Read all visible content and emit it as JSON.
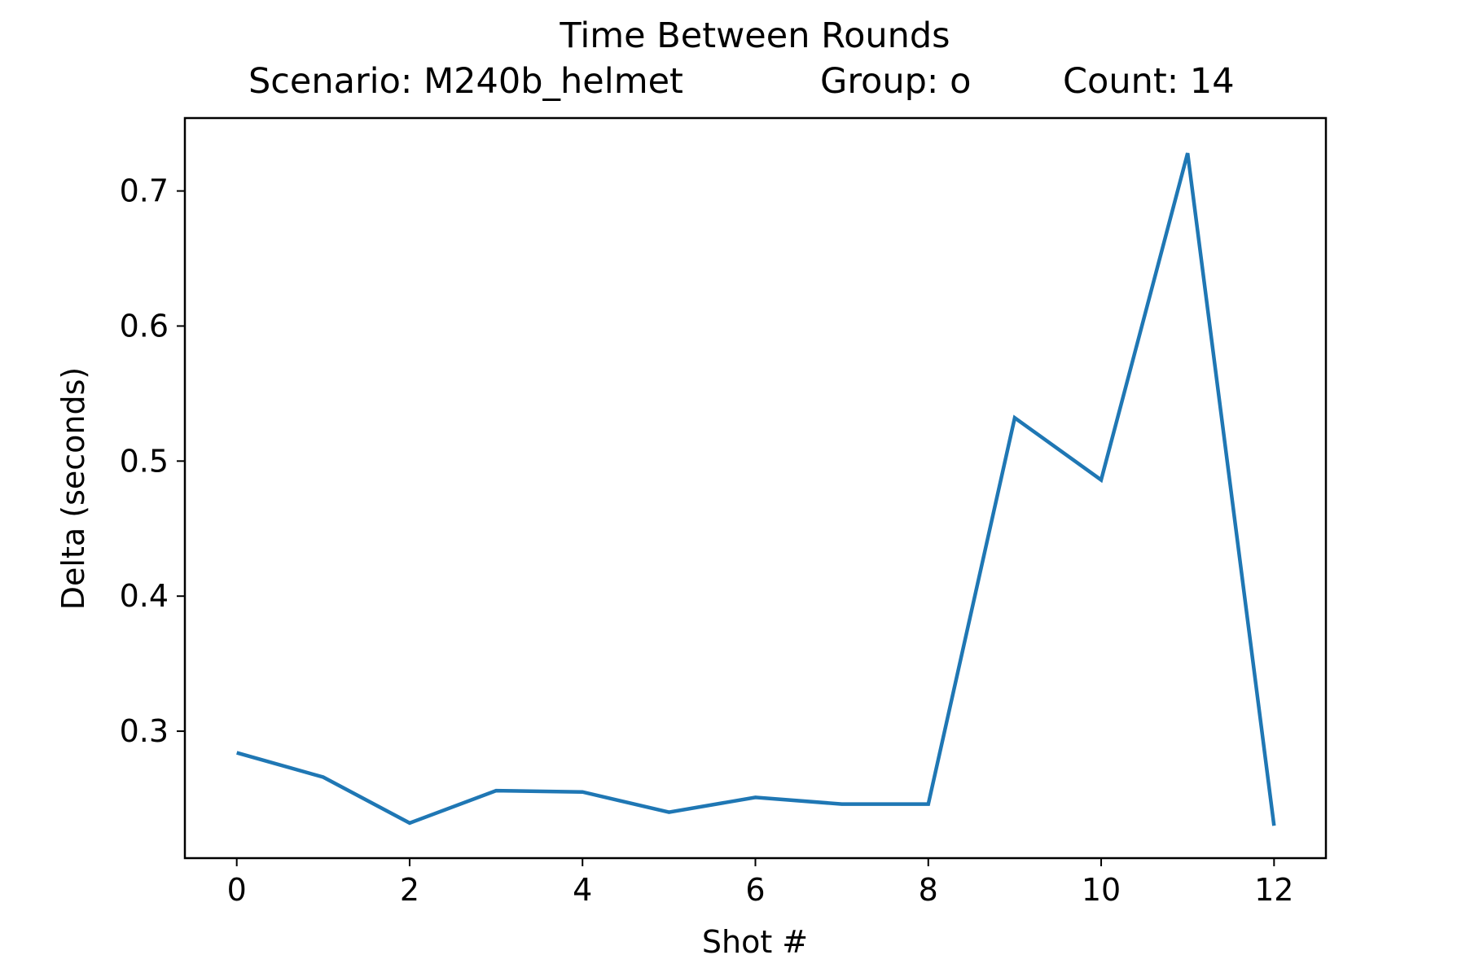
{
  "chart_data": {
    "type": "line",
    "title": "Time Between Rounds",
    "subtitle": {
      "scenario": "Scenario: M240b_helmet",
      "group": "Group: o",
      "count": "Count: 14"
    },
    "xlabel": "Shot #",
    "ylabel": "Delta (seconds)",
    "xlim": [
      -0.6,
      12.6
    ],
    "ylim": [
      0.206,
      0.754
    ],
    "xticks": [
      0,
      2,
      4,
      6,
      8,
      10,
      12
    ],
    "yticks": [
      0.3,
      0.4,
      0.5,
      0.6,
      0.7
    ],
    "grid": false,
    "series": [
      {
        "color": "#1f77b4",
        "x": [
          0,
          1,
          2,
          3,
          4,
          5,
          6,
          7,
          8,
          9,
          10,
          11,
          12
        ],
        "values": [
          0.284,
          0.266,
          0.232,
          0.256,
          0.255,
          0.24,
          0.251,
          0.246,
          0.246,
          0.532,
          0.486,
          0.728,
          0.23
        ]
      }
    ]
  }
}
